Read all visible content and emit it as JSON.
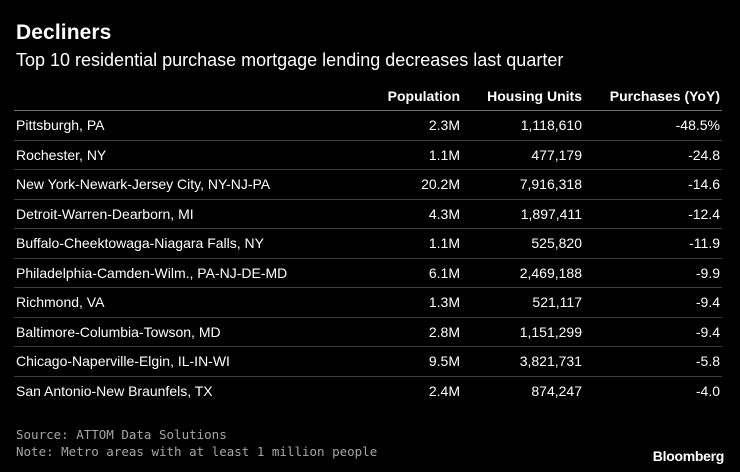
{
  "chart_data": {
    "type": "table",
    "title": "Decliners",
    "subtitle": "Top 10 residential purchase mortgage lending decreases last quarter",
    "columns": [
      "",
      "Population",
      "Housing Units",
      "Purchases (YoY)"
    ],
    "rows": [
      [
        "Pittsburgh, PA",
        "2.3M",
        "1,118,610",
        "-48.5%"
      ],
      [
        "Rochester, NY",
        "1.1M",
        "477,179",
        "-24.8"
      ],
      [
        "New York-Newark-Jersey City, NY-NJ-PA",
        "20.2M",
        "7,916,318",
        "-14.6"
      ],
      [
        "Detroit-Warren-Dearborn, MI",
        "4.3M",
        "1,897,411",
        "-12.4"
      ],
      [
        "Buffalo-Cheektowaga-Niagara Falls, NY",
        "1.1M",
        "525,820",
        "-11.9"
      ],
      [
        "Philadelphia-Camden-Wilm., PA-NJ-DE-MD",
        "6.1M",
        "2,469,188",
        "-9.9"
      ],
      [
        "Richmond, VA",
        "1.3M",
        "521,117",
        "-9.4"
      ],
      [
        "Baltimore-Columbia-Towson, MD",
        "2.8M",
        "1,151,299",
        "-9.4"
      ],
      [
        "Chicago-Naperville-Elgin, IL-IN-WI",
        "9.5M",
        "3,821,731",
        "-5.8"
      ],
      [
        "San Antonio-New Braunfels, TX",
        "2.4M",
        "874,247",
        "-4.0"
      ]
    ]
  },
  "footer": {
    "source": "Source: ATTOM Data Solutions",
    "note": "Note: Metro areas with at least 1 million people",
    "brand": "Bloomberg"
  },
  "colors": {
    "background": "#000000",
    "text": "#ffffff",
    "footnote": "#a6a6a6",
    "row_divider": "#3c3c3c",
    "header_divider": "#6e6e6e"
  }
}
